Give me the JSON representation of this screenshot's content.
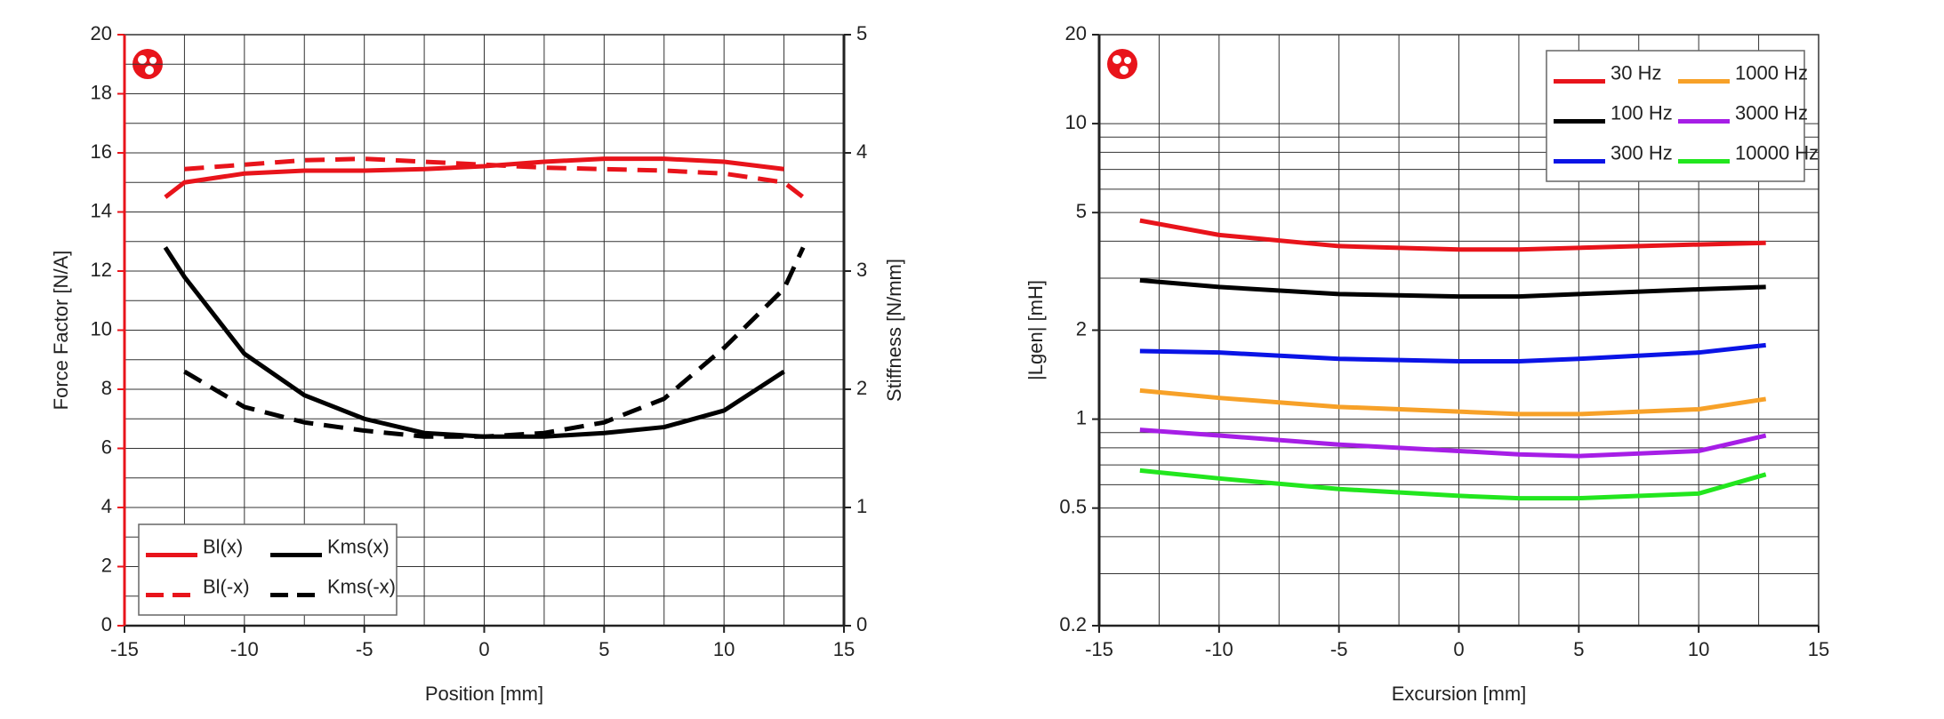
{
  "chart_data": [
    {
      "type": "line",
      "xlabel": "Position [mm]",
      "ylabel": "Force Factor [N/A]",
      "y2label": "Stiffness [N/mm]",
      "xlim": [
        -15,
        15
      ],
      "xticks": [
        -15,
        -10,
        -5,
        0,
        5,
        10,
        15
      ],
      "minor_xticks": [
        -12.5,
        -7.5,
        -2.5,
        2.5,
        7.5,
        12.5
      ],
      "ylim": [
        0,
        20
      ],
      "yticks": [
        0,
        2,
        4,
        6,
        8,
        10,
        12,
        14,
        16,
        18,
        20
      ],
      "minor_yticks": [
        1,
        3,
        5,
        7,
        9,
        11,
        13,
        15,
        17,
        19
      ],
      "y2lim": [
        0,
        5
      ],
      "y2ticks": [
        0,
        1,
        2,
        3,
        4,
        5
      ],
      "ycolor": "#e8141b",
      "grid": true,
      "legend": "lower left",
      "legend_rows": 2,
      "x": [
        -13.3,
        -12.5,
        -10,
        -7.5,
        -5,
        -2.5,
        0,
        2.5,
        5,
        7.5,
        10,
        12.5,
        13.3
      ],
      "series": [
        {
          "name": "Bl(x)",
          "color": "#e8141b",
          "dash": false,
          "values": [
            14.5,
            15.0,
            15.3,
            15.4,
            15.4,
            15.45,
            15.55,
            15.7,
            15.8,
            15.8,
            15.7,
            15.45,
            null
          ]
        },
        {
          "name": "Bl(-x)",
          "color": "#e8141b",
          "dash": true,
          "values": [
            null,
            15.45,
            15.6,
            15.75,
            15.8,
            15.7,
            15.6,
            15.5,
            15.45,
            15.4,
            15.3,
            15.0,
            14.5
          ]
        },
        {
          "name": "Kms(x)",
          "color": "#000000",
          "dash": false,
          "axis": "y2",
          "values": [
            3.2,
            2.95,
            2.3,
            1.95,
            1.75,
            1.63,
            1.6,
            1.6,
            1.63,
            1.68,
            1.82,
            2.15,
            null
          ]
        },
        {
          "name": "Kms(-x)",
          "color": "#000000",
          "dash": true,
          "axis": "y2",
          "values": [
            null,
            2.15,
            1.85,
            1.72,
            1.65,
            1.6,
            1.6,
            1.63,
            1.72,
            1.92,
            2.35,
            2.85,
            3.2
          ]
        }
      ]
    },
    {
      "type": "line",
      "xlabel": "Excursion [mm]",
      "ylabel": "|Lgen| [mH]",
      "xlim": [
        -15,
        15
      ],
      "xticks": [
        -15,
        -10,
        -5,
        0,
        5,
        10,
        15
      ],
      "minor_xticks": [
        -12.5,
        -7.5,
        -2.5,
        2.5,
        7.5,
        12.5
      ],
      "ylim": [
        0.2,
        20
      ],
      "yticks": [
        0.2,
        0.5,
        1,
        2,
        5,
        10,
        20
      ],
      "minor_yticks": [
        0.3,
        0.4,
        0.6,
        0.7,
        0.8,
        0.9,
        3,
        4,
        6,
        7,
        8,
        9
      ],
      "log_y": true,
      "grid": true,
      "legend": "upper right",
      "legend_rows": 3,
      "x": [
        -13.3,
        -10,
        -5,
        0,
        2.5,
        5,
        10,
        12.8
      ],
      "series": [
        {
          "name": "30 Hz",
          "color": "#e8141b",
          "values": [
            4.7,
            4.2,
            3.85,
            3.75,
            3.75,
            3.8,
            3.9,
            3.95
          ]
        },
        {
          "name": "100 Hz",
          "color": "#000000",
          "values": [
            2.95,
            2.8,
            2.65,
            2.6,
            2.6,
            2.65,
            2.75,
            2.8
          ]
        },
        {
          "name": "300 Hz",
          "color": "#0a14e6",
          "values": [
            1.7,
            1.68,
            1.6,
            1.57,
            1.57,
            1.6,
            1.68,
            1.78
          ]
        },
        {
          "name": "1000 Hz",
          "color": "#f7a128",
          "values": [
            1.25,
            1.18,
            1.1,
            1.06,
            1.04,
            1.04,
            1.08,
            1.17
          ]
        },
        {
          "name": "3000 Hz",
          "color": "#a61ee6",
          "values": [
            0.92,
            0.88,
            0.82,
            0.78,
            0.76,
            0.75,
            0.78,
            0.88
          ]
        },
        {
          "name": "10000 Hz",
          "color": "#22e61e",
          "values": [
            0.67,
            0.63,
            0.58,
            0.55,
            0.54,
            0.54,
            0.56,
            0.65
          ]
        }
      ]
    }
  ]
}
